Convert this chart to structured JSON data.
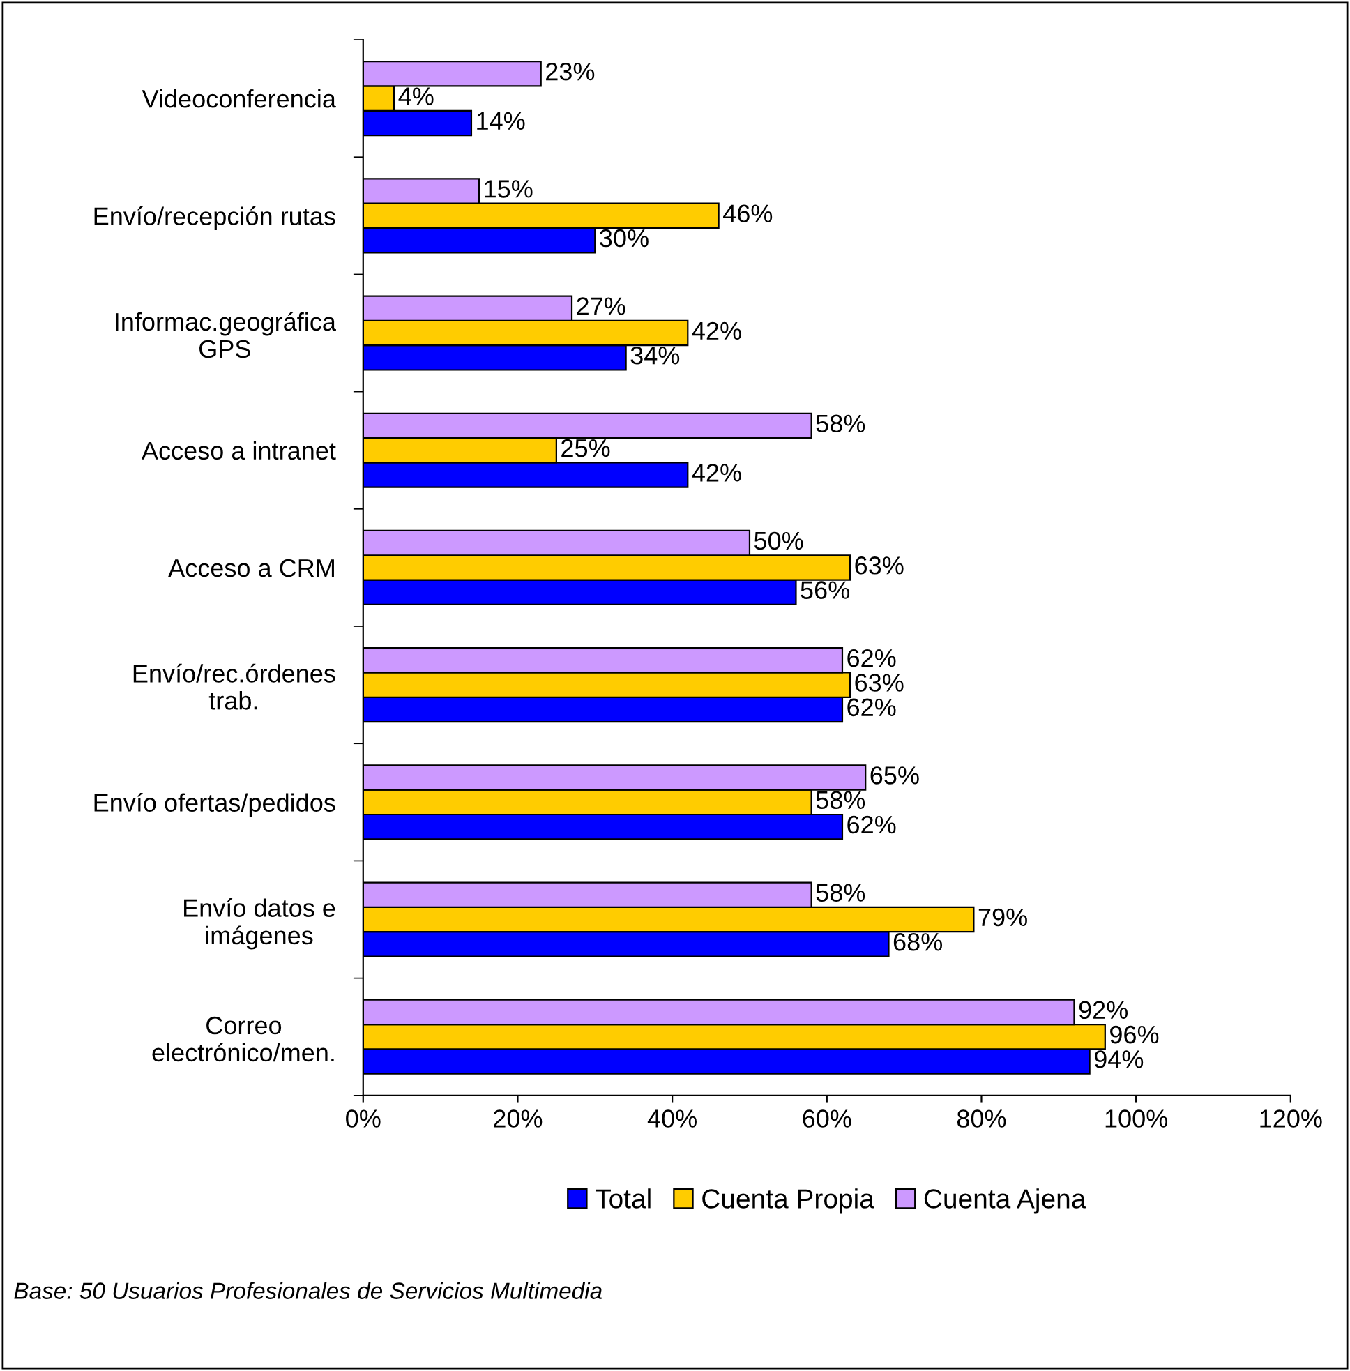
{
  "chart_data": {
    "type": "bar",
    "orientation": "horizontal",
    "categories": [
      "Videoconferencia",
      "Envío/recepción rutas",
      "Informac.geográfica\nGPS",
      "Acceso a intranet",
      "Acceso a CRM",
      "Envío/rec.órdenes\ntrab.",
      "Envío ofertas/pedidos",
      "Envío datos e\nimágenes",
      "Correo\nelectrónico/men."
    ],
    "series": [
      {
        "name": "Total",
        "color": "#0000ff",
        "values": [
          14,
          30,
          34,
          42,
          56,
          62,
          62,
          68,
          94
        ],
        "value_labels": [
          "14%",
          "30%",
          "34%",
          "42%",
          "56%",
          "62%",
          "62%",
          "68%",
          "94%"
        ]
      },
      {
        "name": "Cuenta Propia",
        "color": "#ffcc00",
        "values": [
          4,
          46,
          42,
          25,
          63,
          63,
          58,
          79,
          96
        ],
        "value_labels": [
          "4%",
          "46%",
          "42%",
          "25%",
          "63%",
          "63%",
          "58%",
          "79%",
          "96%"
        ]
      },
      {
        "name": "Cuenta Ajena",
        "color": "#cc99ff",
        "values": [
          23,
          15,
          27,
          58,
          50,
          62,
          65,
          58,
          92
        ],
        "value_labels": [
          "23%",
          "15%",
          "27%",
          "58%",
          "50%",
          "62%",
          "65%",
          "58%",
          "92%"
        ]
      }
    ],
    "xlim": [
      0,
      120
    ],
    "xticks": [
      {
        "value": 0,
        "label": "0%"
      },
      {
        "value": 20,
        "label": "20%"
      },
      {
        "value": 40,
        "label": "40%"
      },
      {
        "value": 60,
        "label": "60%"
      },
      {
        "value": 80,
        "label": "80%"
      },
      {
        "value": 100,
        "label": "100%"
      },
      {
        "value": 120,
        "label": "120%"
      }
    ],
    "grid": false,
    "legend": "bottom",
    "annotations": [
      "Base: 50 Usuarios Profesionales de Servicios Multimedia"
    ]
  }
}
